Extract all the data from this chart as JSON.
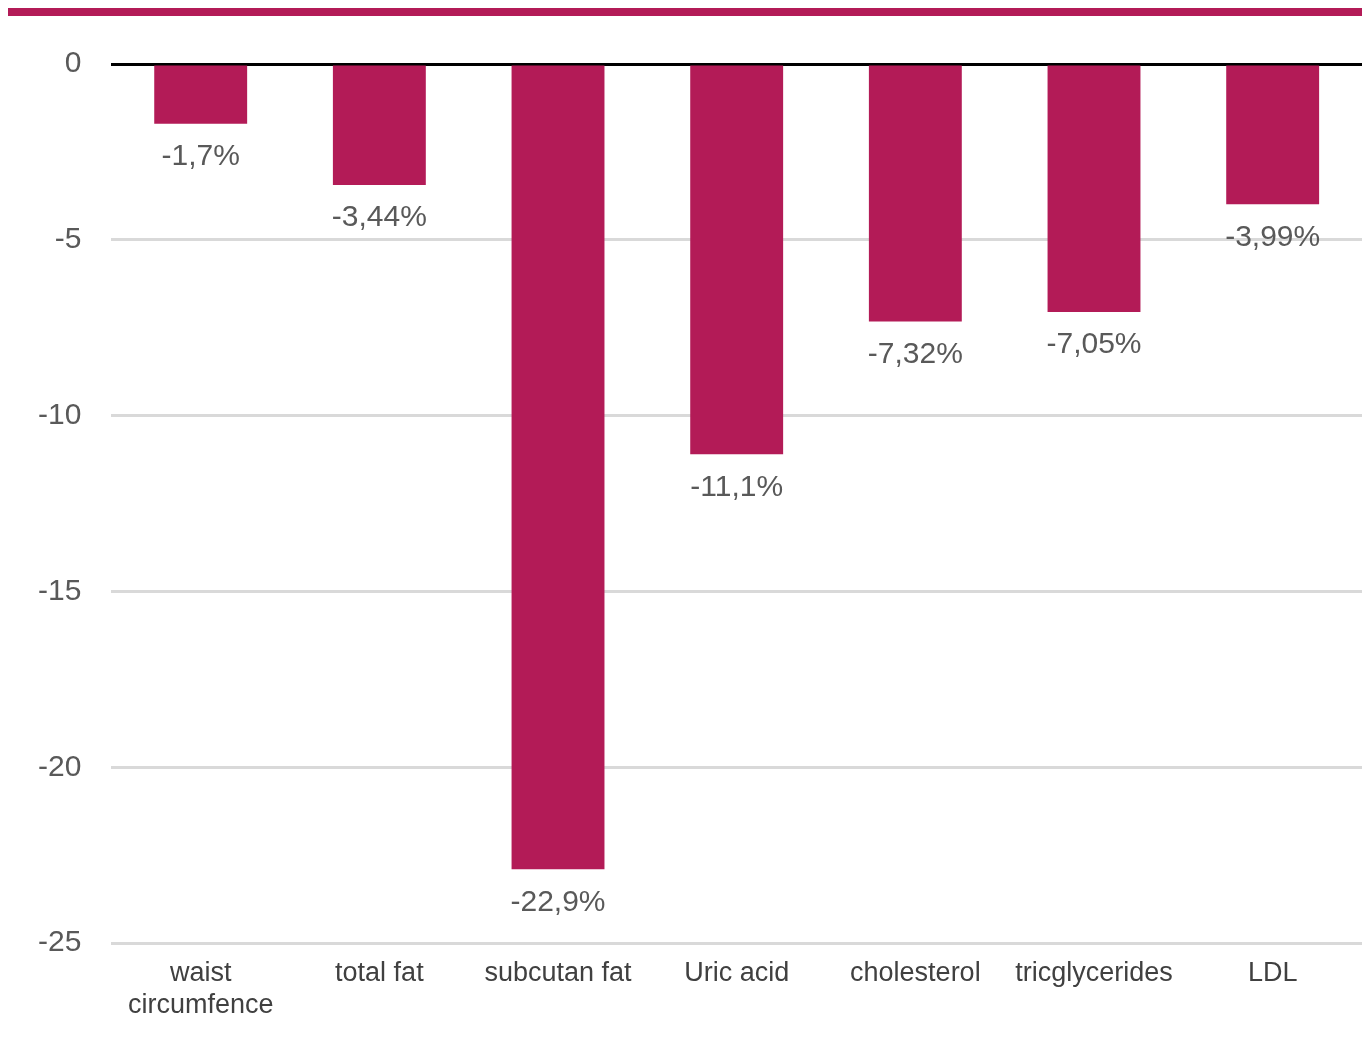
{
  "chart_data": {
    "type": "bar",
    "categories": [
      "waist circumfence",
      "total fat",
      "subcutan fat",
      "Uric acid",
      "cholesterol",
      "tricglycerides",
      "LDL"
    ],
    "values": [
      -1.7,
      -3.44,
      -22.9,
      -11.1,
      -7.32,
      -7.05,
      -3.99
    ],
    "value_labels": [
      "-1,7%",
      "-3,44%",
      "-22,9%",
      "-11,1%",
      "-7,32%",
      "-7,05%",
      "-3,99%"
    ],
    "color": "#b31b57",
    "ylim": [
      -25,
      0
    ],
    "yticks": [
      -25,
      -20,
      -15,
      -10,
      -5,
      0
    ],
    "grid": "y",
    "legend": false
  }
}
